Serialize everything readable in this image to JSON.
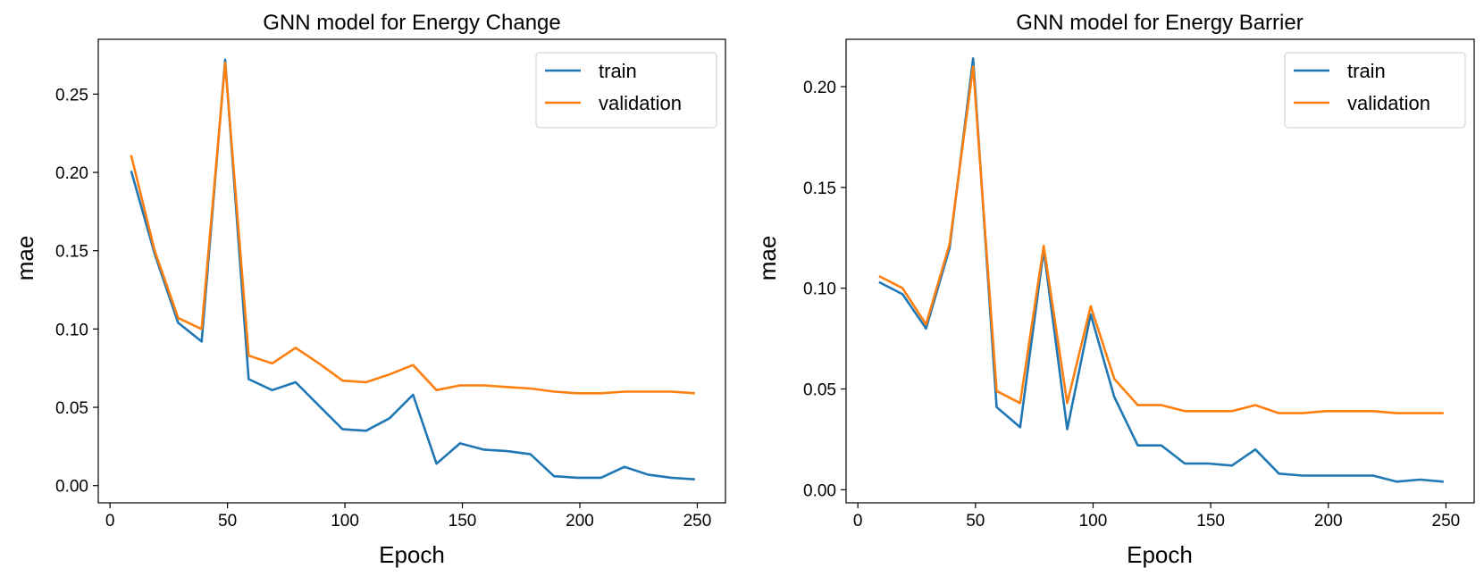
{
  "chart_data": [
    {
      "type": "line",
      "title": "GNN model for Energy Change",
      "xlabel": "Epoch",
      "ylabel": "mae",
      "xlim": [
        -5,
        262
      ],
      "ylim": [
        -0.011,
        0.285
      ],
      "xticks": [
        0,
        50,
        100,
        150,
        200,
        250
      ],
      "yticks": [
        0.0,
        0.05,
        0.1,
        0.15,
        0.2,
        0.25
      ],
      "ytick_labels": [
        "0.00",
        "0.05",
        "0.10",
        "0.15",
        "0.20",
        "0.25"
      ],
      "grid": false,
      "legend_position": "top-right",
      "x": [
        9,
        19,
        29,
        39,
        49,
        59,
        69,
        79,
        89,
        99,
        109,
        119,
        129,
        139,
        149,
        159,
        169,
        179,
        189,
        199,
        209,
        219,
        229,
        239,
        249
      ],
      "series": [
        {
          "name": "train",
          "color": "#1f77b4",
          "values": [
            0.201,
            0.148,
            0.104,
            0.092,
            0.272,
            0.068,
            0.061,
            0.066,
            0.051,
            0.036,
            0.035,
            0.043,
            0.058,
            0.014,
            0.027,
            0.023,
            0.022,
            0.02,
            0.006,
            0.005,
            0.005,
            0.012,
            0.007,
            0.005,
            0.004
          ]
        },
        {
          "name": "validation",
          "color": "#ff7f0e",
          "values": [
            0.211,
            0.15,
            0.107,
            0.1,
            0.27,
            0.083,
            0.078,
            0.088,
            0.078,
            0.067,
            0.066,
            0.071,
            0.077,
            0.061,
            0.064,
            0.064,
            0.063,
            0.062,
            0.06,
            0.059,
            0.059,
            0.06,
            0.06,
            0.06,
            0.059
          ]
        }
      ]
    },
    {
      "type": "line",
      "title": "GNN model for Energy Barrier",
      "xlabel": "Epoch",
      "ylabel": "mae",
      "xlim": [
        -5,
        262
      ],
      "ylim": [
        -0.0065,
        0.2235
      ],
      "xticks": [
        0,
        50,
        100,
        150,
        200,
        250
      ],
      "yticks": [
        0.0,
        0.05,
        0.1,
        0.15,
        0.2
      ],
      "ytick_labels": [
        "0.00",
        "0.05",
        "0.10",
        "0.15",
        "0.20"
      ],
      "grid": false,
      "legend_position": "top-right",
      "x": [
        9,
        19,
        29,
        39,
        49,
        59,
        69,
        79,
        89,
        99,
        109,
        119,
        129,
        139,
        149,
        159,
        169,
        179,
        189,
        199,
        209,
        219,
        229,
        239,
        249
      ],
      "series": [
        {
          "name": "train",
          "color": "#1f77b4",
          "values": [
            0.103,
            0.097,
            0.08,
            0.12,
            0.214,
            0.041,
            0.031,
            0.119,
            0.03,
            0.087,
            0.046,
            0.022,
            0.022,
            0.013,
            0.013,
            0.012,
            0.02,
            0.008,
            0.007,
            0.007,
            0.007,
            0.007,
            0.004,
            0.005,
            0.004
          ]
        },
        {
          "name": "validation",
          "color": "#ff7f0e",
          "values": [
            0.106,
            0.1,
            0.082,
            0.122,
            0.21,
            0.049,
            0.043,
            0.121,
            0.043,
            0.091,
            0.055,
            0.042,
            0.042,
            0.039,
            0.039,
            0.039,
            0.042,
            0.038,
            0.038,
            0.039,
            0.039,
            0.039,
            0.038,
            0.038,
            0.038
          ]
        }
      ]
    }
  ]
}
